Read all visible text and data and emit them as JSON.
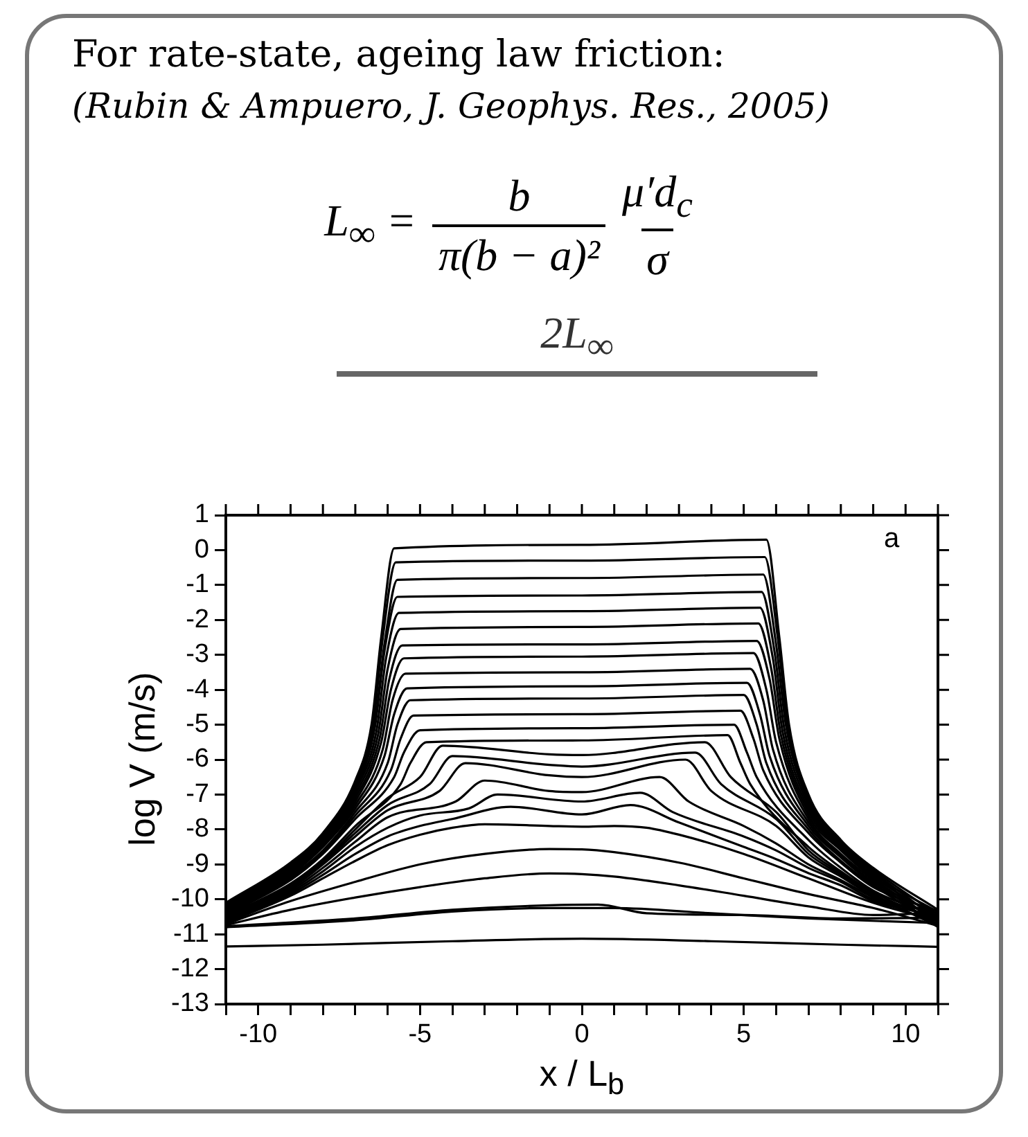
{
  "chart_data": {
    "type": "line",
    "title": "For rate-state, ageing law friction:",
    "subtitle": "(Rubin & Ampuero, J. Geophys. Res., 2005)",
    "xlabel": "x / L$_{b}$",
    "ylabel": "log V (m/s)",
    "annotations": [
      "L$_{∞}$ =",
      "b",
      "π(b − a)²",
      "μ′d$_{c}$",
      "σ",
      "2L$_{∞}$",
      "a"
    ],
    "xlim": [
      -11,
      11
    ],
    "xticks": [
      {
        "value": -11,
        "label": null
      },
      -10,
      {
        "value": -9,
        "label": null
      },
      {
        "value": -8,
        "label": null
      },
      {
        "value": -7,
        "label": null
      },
      {
        "value": -6,
        "label": null
      },
      -5,
      {
        "value": -4,
        "label": null
      },
      {
        "value": -3,
        "label": null
      },
      {
        "value": -2,
        "label": null
      },
      {
        "value": -1,
        "label": null
      },
      0,
      {
        "value": 1,
        "label": null
      },
      {
        "value": 2,
        "label": null
      },
      {
        "value": 3,
        "label": null
      },
      {
        "value": 4,
        "label": null
      },
      5,
      {
        "value": 6,
        "label": null
      },
      {
        "value": 7,
        "label": null
      },
      {
        "value": 8,
        "label": null
      },
      {
        "value": 9,
        "label": null
      },
      10,
      {
        "value": 11,
        "label": null
      }
    ],
    "ylim": [
      -13,
      1
    ],
    "yticks": [
      -13,
      -12,
      -11,
      -10,
      -9,
      -8,
      -7,
      -6,
      -5,
      -4,
      -3,
      -2,
      -1,
      0,
      1
    ],
    "series": [
      {
        "color": "#000000",
        "x": [
          -11,
          -9,
          -8,
          -7,
          -6.5,
          -6.2,
          -5.8,
          0,
          5.7,
          6.1,
          6.4,
          7,
          8,
          9,
          11
        ],
        "values": [
          -10.1,
          -8.95,
          -8.1,
          -6.6,
          -5.0,
          -2.5,
          0.05,
          0.15,
          0.3,
          -2.5,
          -5.0,
          -7.0,
          -8.3,
          -9.1,
          -10.3
        ]
      },
      {
        "color": "#000000",
        "x": [
          -11,
          -9,
          -8,
          -7,
          -6.45,
          -6.15,
          -5.75,
          0,
          5.65,
          6.05,
          6.35,
          7,
          8,
          9,
          11
        ],
        "values": [
          -10.13,
          -9.0,
          -8.15,
          -6.7,
          -5.0,
          -2.5,
          -0.35,
          -0.3,
          -0.2,
          -2.5,
          -5.0,
          -7.1,
          -8.35,
          -9.15,
          -10.45
        ]
      },
      {
        "color": "#000000",
        "x": [
          -11,
          -9,
          -8,
          -7,
          -6.4,
          -6.1,
          -5.7,
          0,
          5.6,
          6.0,
          6.3,
          7,
          8,
          9,
          11
        ],
        "values": [
          -10.16,
          -9.0,
          -8.2,
          -6.8,
          -5.0,
          -2.7,
          -0.85,
          -0.8,
          -0.7,
          -2.7,
          -5.0,
          -7.2,
          -8.4,
          -9.2,
          -10.59
        ]
      },
      {
        "color": "#000000",
        "x": [
          -11,
          -9,
          -8,
          -7,
          -6.4,
          -6.1,
          -5.7,
          0,
          5.55,
          5.95,
          6.25,
          7,
          8,
          9,
          11
        ],
        "values": [
          -10.19,
          -9.0,
          -8.2,
          -6.85,
          -5.1,
          -2.9,
          -1.34,
          -1.3,
          -1.2,
          -2.9,
          -5.1,
          -7.3,
          -8.45,
          -9.25,
          -10.74
        ]
      },
      {
        "color": "#000000",
        "x": [
          -11,
          -9,
          -8,
          -7,
          -6.35,
          -6.05,
          -5.65,
          0,
          5.5,
          5.9,
          6.2,
          7,
          8,
          9,
          11
        ],
        "values": [
          -10.22,
          -9.05,
          -8.25,
          -6.9,
          -5.2,
          -3.1,
          -1.8,
          -1.75,
          -1.65,
          -3.1,
          -5.2,
          -7.4,
          -8.5,
          -9.3,
          -10.36
        ]
      },
      {
        "color": "#000000",
        "x": [
          -11,
          -9,
          -8,
          -7,
          -6.3,
          -6.0,
          -5.6,
          0,
          5.45,
          5.85,
          6.15,
          7,
          8,
          9,
          11
        ],
        "values": [
          -10.25,
          -9.1,
          -8.3,
          -7.0,
          -5.3,
          -3.4,
          -2.26,
          -2.2,
          -2.1,
          -3.4,
          -5.3,
          -7.5,
          -8.55,
          -9.35,
          -10.51
        ]
      },
      {
        "color": "#000000",
        "x": [
          -11,
          -9,
          -8,
          -7,
          -6.25,
          -5.95,
          -5.55,
          0,
          5.4,
          5.8,
          6.1,
          7,
          8,
          9,
          11
        ],
        "values": [
          -10.27,
          -9.15,
          -8.35,
          -7.1,
          -5.4,
          -3.7,
          -2.73,
          -2.7,
          -2.6,
          -3.7,
          -5.4,
          -7.6,
          -8.6,
          -9.4,
          -10.65
        ]
      },
      {
        "color": "#000000",
        "x": [
          -11,
          -9,
          -8,
          -7,
          -6.2,
          -5.9,
          -5.5,
          0,
          5.3,
          5.7,
          6.0,
          7,
          8,
          9,
          11
        ],
        "values": [
          -10.3,
          -9.2,
          -8.4,
          -7.2,
          -5.5,
          -4.0,
          -3.1,
          -3.05,
          -2.95,
          -4.0,
          -5.5,
          -7.7,
          -8.7,
          -9.45,
          -10.8
        ]
      },
      {
        "color": "#000000",
        "x": [
          -11,
          -9,
          -8,
          -7,
          -6.15,
          -5.85,
          -5.45,
          0,
          5.2,
          5.6,
          5.9,
          7,
          8,
          9,
          11
        ],
        "values": [
          -10.33,
          -9.25,
          -8.45,
          -7.3,
          -5.7,
          -4.3,
          -3.54,
          -3.5,
          -3.4,
          -4.3,
          -5.7,
          -7.8,
          -8.75,
          -9.5,
          -10.42
        ]
      },
      {
        "color": "#000000",
        "x": [
          -11,
          -9,
          -8,
          -7,
          -6.1,
          -5.8,
          -5.4,
          0,
          5.1,
          5.5,
          5.8,
          7,
          8,
          9,
          11
        ],
        "values": [
          -10.36,
          -9.3,
          -8.5,
          -7.4,
          -5.9,
          -4.7,
          -3.96,
          -3.9,
          -3.8,
          -4.7,
          -5.9,
          -7.9,
          -8.8,
          -9.55,
          -10.57
        ]
      },
      {
        "color": "#000000",
        "x": [
          -11,
          -9,
          -8,
          -7,
          -6.0,
          -5.7,
          -5.3,
          0,
          5.0,
          5.4,
          5.7,
          7,
          8,
          9,
          11
        ],
        "values": [
          -10.39,
          -9.35,
          -8.6,
          -7.5,
          -6.1,
          -5.0,
          -4.3,
          -4.25,
          -4.15,
          -5.0,
          -6.1,
          -8.0,
          -8.9,
          -9.6,
          -10.72
        ]
      },
      {
        "color": "#000000",
        "x": [
          -11,
          -9,
          -8,
          -7,
          -5.9,
          -5.6,
          -5.2,
          0,
          4.9,
          5.3,
          5.6,
          7,
          8,
          9,
          11
        ],
        "values": [
          -10.42,
          -9.4,
          -8.65,
          -7.6,
          -6.3,
          -5.4,
          -4.74,
          -4.7,
          -4.6,
          -5.4,
          -6.3,
          -8.1,
          -8.95,
          -9.65,
          -10.34
        ]
      },
      {
        "color": "#000000",
        "x": [
          -11,
          -9,
          -8,
          -7,
          -5.8,
          -5.5,
          -5.0,
          0,
          4.7,
          5.1,
          5.4,
          7,
          8,
          9,
          11
        ],
        "values": [
          -10.45,
          -9.45,
          -8.7,
          -7.7,
          -6.5,
          -5.8,
          -5.16,
          -5.1,
          -5.0,
          -5.8,
          -6.5,
          -8.3,
          -9.1,
          -9.75,
          -10.49
        ]
      },
      {
        "color": "#000000",
        "x": [
          -11,
          -9,
          -8,
          -7,
          -5.6,
          -5.3,
          -4.8,
          0,
          4.5,
          4.9,
          5.2,
          7,
          8,
          9,
          11
        ],
        "values": [
          -10.48,
          -9.55,
          -8.85,
          -7.9,
          -6.7,
          -6.1,
          -5.5,
          -5.45,
          -5.3,
          -6.1,
          -6.7,
          -8.5,
          -9.2,
          -9.8,
          -10.63
        ]
      },
      {
        "color": "#000000",
        "x": [
          -11,
          -9,
          -8,
          -7,
          -6,
          -5.0,
          -4.3,
          -1,
          0,
          3.8,
          4.6,
          6,
          7,
          8,
          9,
          11
        ],
        "values": [
          -10.51,
          -9.6,
          -8.9,
          -8.0,
          -7.1,
          -6.5,
          -5.6,
          -5.85,
          -5.87,
          -5.5,
          -6.5,
          -7.5,
          -8.6,
          -9.25,
          -9.85,
          -10.78
        ]
      },
      {
        "color": "#000000",
        "x": [
          -11,
          -9,
          -8,
          -7,
          -6,
          -4.7,
          -4.0,
          -1,
          0,
          3.5,
          4.3,
          6,
          7,
          8,
          9,
          11
        ],
        "values": [
          -10.54,
          -9.65,
          -8.95,
          -8.1,
          -7.3,
          -6.7,
          -5.9,
          -6.15,
          -6.2,
          -5.8,
          -6.7,
          -7.7,
          -8.7,
          -9.3,
          -9.9,
          -10.4
        ]
      },
      {
        "color": "#000000",
        "x": [
          -11,
          -9,
          -8,
          -7,
          -6,
          -4.4,
          -3.6,
          -1,
          0,
          3.2,
          4.0,
          6,
          7,
          8,
          9,
          11
        ],
        "values": [
          -10.56,
          -9.7,
          -9.0,
          -8.2,
          -7.45,
          -6.9,
          -6.1,
          -6.45,
          -6.5,
          -6.0,
          -6.9,
          -7.9,
          -8.8,
          -9.35,
          -9.9,
          -10.55
        ]
      },
      {
        "color": "#000000",
        "x": [
          -11,
          -9,
          -8,
          -7,
          -6,
          -3.9,
          -3.0,
          -1,
          0,
          2.4,
          3.3,
          5,
          6,
          7,
          8,
          9,
          11
        ],
        "values": [
          -10.59,
          -9.75,
          -9.1,
          -8.35,
          -7.65,
          -7.2,
          -6.6,
          -6.9,
          -6.93,
          -6.5,
          -7.2,
          -7.9,
          -8.4,
          -9.0,
          -9.45,
          -9.95,
          -10.7
        ]
      },
      {
        "color": "#000000",
        "x": [
          -11,
          -9,
          -8,
          -7,
          -6,
          -5,
          -3.5,
          -2.6,
          0,
          1.8,
          2.8,
          5,
          6,
          7,
          8,
          9,
          11
        ],
        "values": [
          -10.62,
          -9.8,
          -9.2,
          -8.5,
          -7.95,
          -7.6,
          -7.4,
          -7.0,
          -7.2,
          -6.95,
          -7.5,
          -8.2,
          -8.6,
          -9.1,
          -9.5,
          -10.0,
          -10.32
        ]
      },
      {
        "color": "#000000",
        "x": [
          -11,
          -9,
          -8,
          -7,
          -6,
          -5,
          -4,
          -2.2,
          0,
          1.5,
          3,
          5,
          6,
          7,
          8,
          9,
          11
        ],
        "values": [
          -10.65,
          -9.85,
          -9.3,
          -8.7,
          -8.2,
          -7.9,
          -7.7,
          -7.35,
          -7.57,
          -7.3,
          -7.8,
          -8.5,
          -8.85,
          -9.25,
          -9.6,
          -10.05,
          -10.47
        ]
      },
      {
        "color": "#000000",
        "x": [
          -11,
          -9,
          -8,
          -7,
          -6,
          -5,
          -4,
          -3,
          -1,
          0,
          1,
          2,
          3,
          5,
          7,
          9,
          11
        ],
        "values": [
          -10.68,
          -9.9,
          -9.4,
          -8.9,
          -8.45,
          -8.15,
          -7.95,
          -7.85,
          -7.9,
          -7.92,
          -7.9,
          -7.95,
          -8.15,
          -8.7,
          -9.4,
          -10.1,
          -10.61
        ]
      },
      {
        "color": "#000000",
        "x": [
          -11,
          -9,
          -7,
          -5,
          -3,
          -1,
          0,
          1,
          3,
          5,
          7,
          9,
          11
        ],
        "values": [
          -10.71,
          -10.05,
          -9.5,
          -9.0,
          -8.7,
          -8.56,
          -8.57,
          -8.65,
          -8.95,
          -9.4,
          -9.85,
          -10.25,
          -10.76
        ]
      },
      {
        "color": "#000000",
        "x": [
          -11,
          -9,
          -7,
          -5,
          -3,
          -1,
          0,
          1,
          3,
          5,
          7,
          9,
          11
        ],
        "values": [
          -10.74,
          -10.3,
          -9.95,
          -9.65,
          -9.4,
          -9.26,
          -9.28,
          -9.35,
          -9.6,
          -9.9,
          -10.2,
          -10.45,
          -10.38
        ]
      },
      {
        "color": "#000000",
        "x": [
          -11,
          -7,
          -4,
          -1,
          0.5,
          2,
          5,
          8,
          11
        ],
        "values": [
          -10.77,
          -10.55,
          -10.3,
          -10.17,
          -10.15,
          -10.4,
          -10.45,
          -10.55,
          -10.53
        ]
      },
      {
        "color": "#000000",
        "x": [
          -11,
          -7,
          -4,
          -1,
          1,
          4,
          7,
          11
        ],
        "values": [
          -10.8,
          -10.6,
          -10.35,
          -10.25,
          -10.25,
          -10.4,
          -10.55,
          -10.68
        ]
      },
      {
        "color": "#000000",
        "x": [
          -11,
          -8,
          -4,
          0,
          4,
          8,
          11
        ],
        "values": [
          -11.35,
          -11.3,
          -11.2,
          -11.13,
          -11.2,
          -11.3,
          -11.36
        ]
      }
    ]
  }
}
